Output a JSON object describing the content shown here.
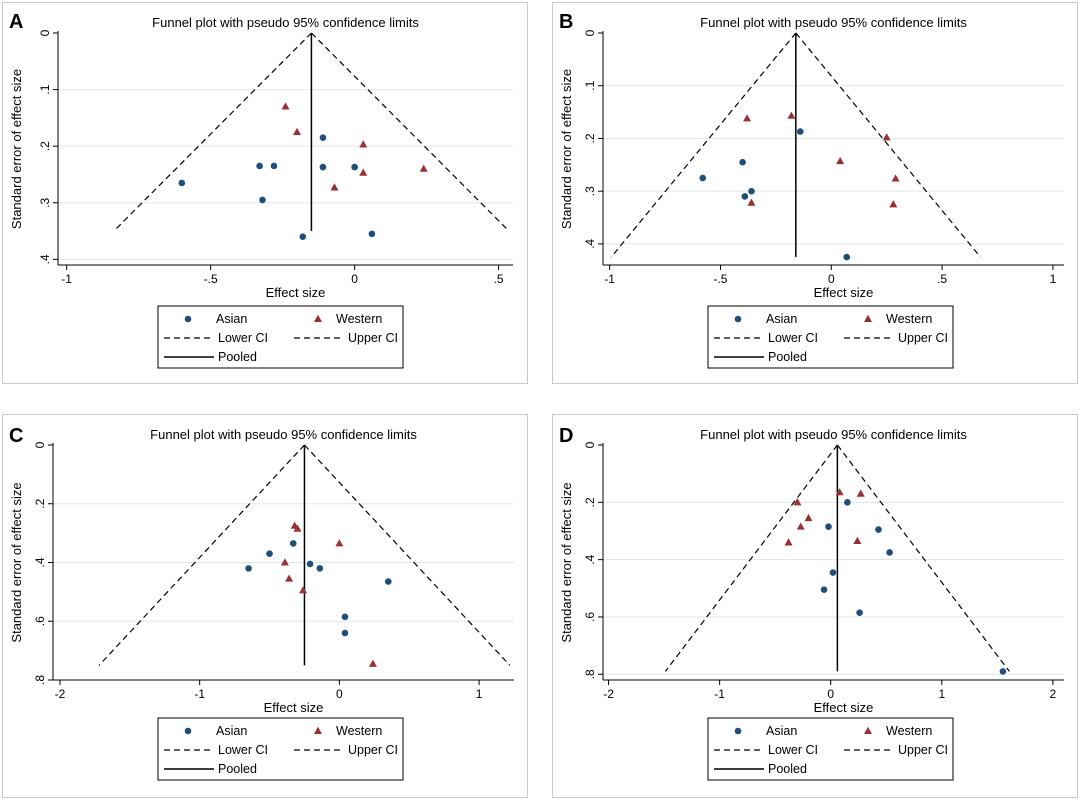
{
  "colors": {
    "asian": "#1f4e79",
    "western": "#9b3034",
    "line": "#000000",
    "grid": "#dde6ee"
  },
  "legend": {
    "asian": "Asian",
    "western": "Western",
    "lower": "Lower CI",
    "upper": "Upper CI",
    "pooled": "Pooled"
  },
  "chart_data": [
    {
      "id": "A",
      "type": "scatter",
      "title": "Funnel plot with pseudo 95% confidence limits",
      "xlabel": "Effect size",
      "ylabel": "Standard error of effect size",
      "xlim": [
        -1.03,
        0.55
      ],
      "ylim": [
        0,
        0.41
      ],
      "xticks": [
        -1,
        -0.5,
        0,
        0.5
      ],
      "xtick_labels": [
        "-1",
        "-.5",
        "0",
        ".5"
      ],
      "yticks": [
        0,
        0.1,
        0.2,
        0.3,
        0.4
      ],
      "ytick_labels": [
        "0",
        ".1",
        ".2",
        ".3",
        ".4"
      ],
      "pooled": -0.15,
      "ci_se_max": 0.35,
      "series": [
        {
          "name": "Asian",
          "points": [
            [
              -0.6,
              0.265
            ],
            [
              -0.33,
              0.235
            ],
            [
              -0.28,
              0.235
            ],
            [
              -0.32,
              0.295
            ],
            [
              -0.11,
              0.185
            ],
            [
              -0.11,
              0.237
            ],
            [
              0.0,
              0.237
            ],
            [
              -0.18,
              0.36
            ],
            [
              0.06,
              0.355
            ]
          ]
        },
        {
          "name": "Western",
          "points": [
            [
              -0.24,
              0.13
            ],
            [
              -0.2,
              0.175
            ],
            [
              0.03,
              0.197
            ],
            [
              0.03,
              0.247
            ],
            [
              -0.07,
              0.273
            ],
            [
              0.24,
              0.24
            ]
          ]
        }
      ]
    },
    {
      "id": "B",
      "type": "scatter",
      "title": "Funnel plot with pseudo 95% confidence limits",
      "xlabel": "Effect size",
      "ylabel": "Standard error of effect size",
      "xlim": [
        -1.03,
        1.05
      ],
      "ylim": [
        0,
        0.44
      ],
      "xticks": [
        -1,
        -0.5,
        0,
        0.5,
        1
      ],
      "xtick_labels": [
        "-1",
        "-.5",
        "0",
        ".5",
        "1"
      ],
      "yticks": [
        0,
        0.1,
        0.2,
        0.3,
        0.4
      ],
      "ytick_labels": [
        "0",
        ".1",
        ".2",
        ".3",
        ".4"
      ],
      "pooled": -0.16,
      "ci_se_max": 0.425,
      "series": [
        {
          "name": "Asian",
          "points": [
            [
              -0.58,
              0.275
            ],
            [
              -0.4,
              0.245
            ],
            [
              -0.14,
              0.187
            ],
            [
              -0.39,
              0.31
            ],
            [
              -0.36,
              0.3
            ],
            [
              0.07,
              0.425
            ]
          ]
        },
        {
          "name": "Western",
          "points": [
            [
              -0.38,
              0.162
            ],
            [
              -0.18,
              0.157
            ],
            [
              -0.36,
              0.322
            ],
            [
              0.04,
              0.243
            ],
            [
              0.25,
              0.198
            ],
            [
              0.29,
              0.276
            ],
            [
              0.28,
              0.325
            ]
          ]
        }
      ]
    },
    {
      "id": "C",
      "type": "scatter",
      "title": "Funnel plot with pseudo 95% confidence limits",
      "xlabel": "Effect size",
      "ylabel": "Standard error of effect size",
      "xlim": [
        -2.05,
        1.25
      ],
      "ylim": [
        0,
        0.8
      ],
      "xticks": [
        -2,
        -1,
        0,
        1
      ],
      "xtick_labels": [
        "-2",
        "-1",
        "0",
        "1"
      ],
      "yticks": [
        0,
        0.2,
        0.4,
        0.6,
        0.8
      ],
      "ytick_labels": [
        "0",
        ".2",
        ".4",
        ".6",
        ".8"
      ],
      "pooled": -0.25,
      "ci_se_max": 0.75,
      "series": [
        {
          "name": "Asian",
          "points": [
            [
              -0.65,
              0.42
            ],
            [
              -0.5,
              0.37
            ],
            [
              -0.33,
              0.335
            ],
            [
              -0.21,
              0.405
            ],
            [
              -0.14,
              0.42
            ],
            [
              0.35,
              0.465
            ],
            [
              0.04,
              0.585
            ],
            [
              0.04,
              0.64
            ]
          ]
        },
        {
          "name": "Western",
          "points": [
            [
              -0.32,
              0.275
            ],
            [
              -0.3,
              0.285
            ],
            [
              -0.39,
              0.4
            ],
            [
              -0.36,
              0.455
            ],
            [
              -0.26,
              0.495
            ],
            [
              0.0,
              0.335
            ],
            [
              0.24,
              0.745
            ]
          ]
        }
      ]
    },
    {
      "id": "D",
      "type": "scatter",
      "title": "Funnel plot with pseudo 95% confidence limits",
      "xlabel": "Effect size",
      "ylabel": "Standard error of effect size",
      "xlim": [
        -2.05,
        2.1
      ],
      "ylim": [
        0,
        0.82
      ],
      "xticks": [
        -2,
        -1,
        0,
        1,
        2
      ],
      "xtick_labels": [
        "-2",
        "-1",
        "0",
        "1",
        "2"
      ],
      "yticks": [
        0,
        0.2,
        0.4,
        0.6,
        0.8
      ],
      "ytick_labels": [
        "0",
        ".2",
        ".4",
        ".6",
        ".8"
      ],
      "pooled": 0.06,
      "ci_se_max": 0.79,
      "series": [
        {
          "name": "Asian",
          "points": [
            [
              0.15,
              0.2
            ],
            [
              -0.02,
              0.285
            ],
            [
              0.43,
              0.295
            ],
            [
              0.53,
              0.375
            ],
            [
              0.02,
              0.445
            ],
            [
              -0.06,
              0.505
            ],
            [
              0.26,
              0.585
            ],
            [
              1.55,
              0.79
            ]
          ]
        },
        {
          "name": "Western",
          "points": [
            [
              -0.3,
              0.2
            ],
            [
              -0.2,
              0.255
            ],
            [
              -0.27,
              0.285
            ],
            [
              -0.38,
              0.34
            ],
            [
              0.08,
              0.165
            ],
            [
              0.27,
              0.17
            ],
            [
              0.24,
              0.335
            ]
          ]
        }
      ]
    }
  ]
}
